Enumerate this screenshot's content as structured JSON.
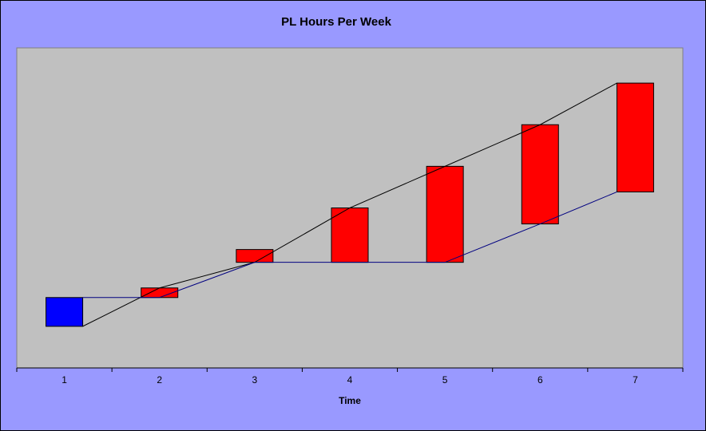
{
  "chart_data": {
    "type": "bar",
    "subtype": "candlestick",
    "title": "PL Hours Per Week",
    "xlabel": "Time",
    "ylabel": "",
    "categories": [
      "1",
      "2",
      "3",
      "4",
      "5",
      "6",
      "7"
    ],
    "ylim": [
      0,
      100
    ],
    "y_axis_visible": false,
    "grid": false,
    "series": [
      {
        "kind": "box",
        "low": [
          13,
          22,
          33,
          33,
          33,
          45,
          55
        ],
        "high": [
          22,
          25,
          37,
          50,
          63,
          76,
          89
        ]
      },
      {
        "kind": "line",
        "values": [
          13,
          25,
          33,
          50,
          63,
          76,
          89
        ]
      },
      {
        "kind": "line",
        "values": [
          22,
          22,
          33,
          33,
          33,
          45,
          55
        ]
      }
    ],
    "colors": {
      "plot_background": "#c0c0c0",
      "page_background": "#9999ff",
      "first_box": "#0000ff",
      "other_boxes": "#ff0000",
      "upper_line": "#000000",
      "lower_line": "#000080"
    }
  }
}
